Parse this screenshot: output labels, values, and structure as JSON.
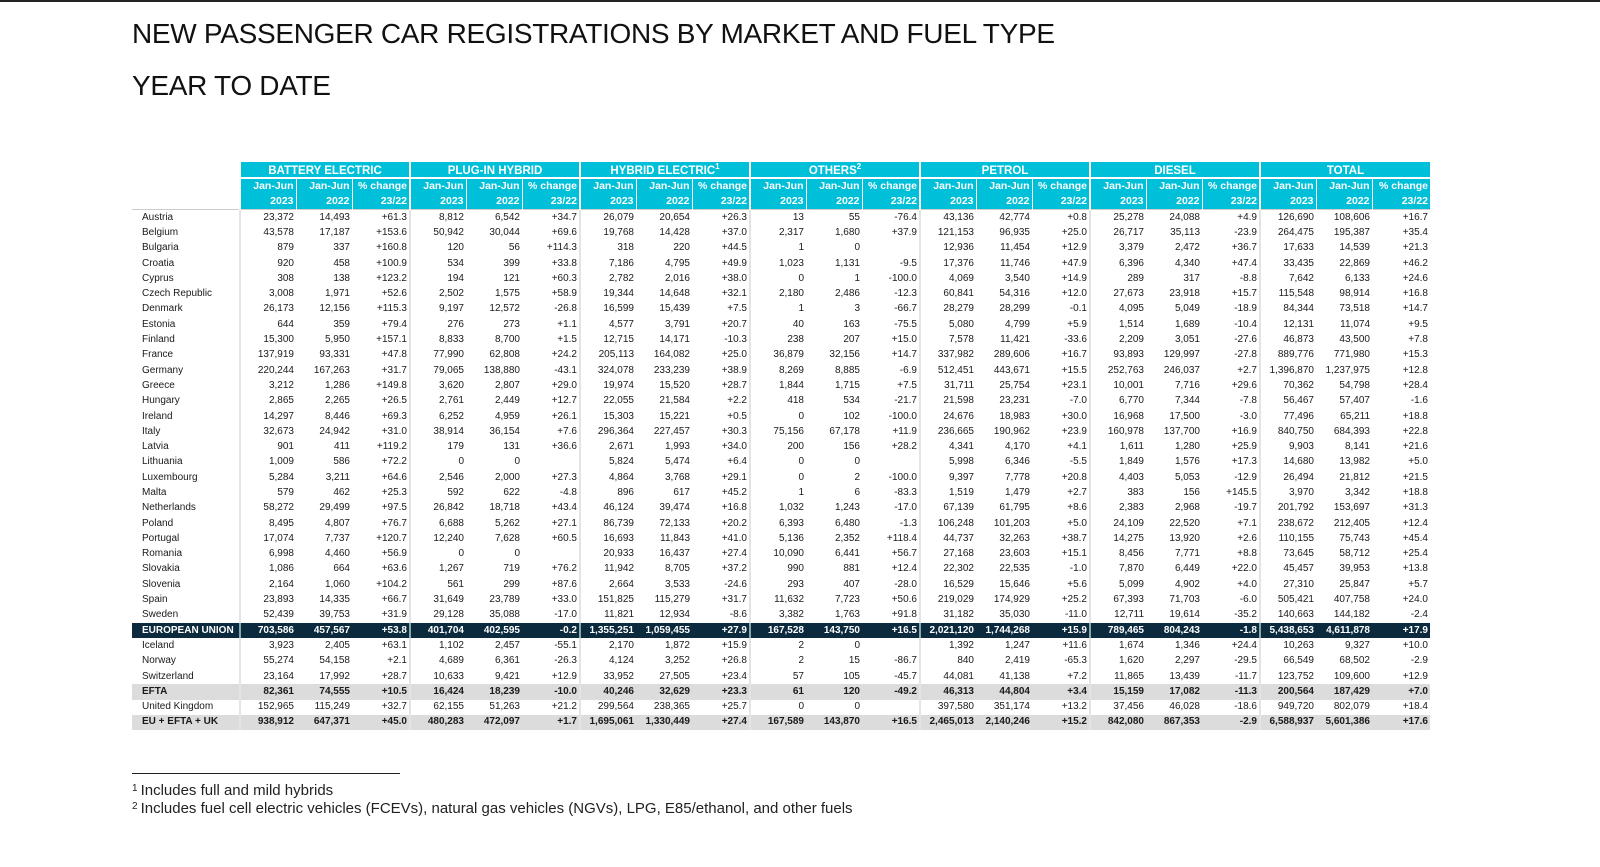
{
  "title": "NEW PASSENGER CAR REGISTRATIONS BY MARKET AND FUEL TYPE",
  "subtitle": "YEAR TO DATE",
  "header_color": "#00c0d9",
  "eu_row_color": "#0b2a3e",
  "groups": [
    {
      "label": "BATTERY ELECTRIC",
      "sup": ""
    },
    {
      "label": "PLUG-IN HYBRID",
      "sup": ""
    },
    {
      "label": "HYBRID ELECTRIC",
      "sup": "1"
    },
    {
      "label": "OTHERS",
      "sup": "2"
    },
    {
      "label": "PETROL",
      "sup": ""
    },
    {
      "label": "DIESEL",
      "sup": ""
    },
    {
      "label": "TOTAL",
      "sup": ""
    }
  ],
  "subheaders": [
    {
      "line1": "Jan-Jun",
      "line2": "2023"
    },
    {
      "line1": "Jan-Jun",
      "line2": "2022"
    },
    {
      "line1": "% change",
      "line2": "23/22"
    }
  ],
  "rows": [
    {
      "type": "country",
      "cells": [
        "Austria",
        "23,372",
        "14,493",
        "+61.3",
        "8,812",
        "6,542",
        "+34.7",
        "26,079",
        "20,654",
        "+26.3",
        "13",
        "55",
        "-76.4",
        "43,136",
        "42,774",
        "+0.8",
        "25,278",
        "24,088",
        "+4.9",
        "126,690",
        "108,606",
        "+16.7"
      ]
    },
    {
      "type": "country",
      "cells": [
        "Belgium",
        "43,578",
        "17,187",
        "+153.6",
        "50,942",
        "30,044",
        "+69.6",
        "19,768",
        "14,428",
        "+37.0",
        "2,317",
        "1,680",
        "+37.9",
        "121,153",
        "96,935",
        "+25.0",
        "26,717",
        "35,113",
        "-23.9",
        "264,475",
        "195,387",
        "+35.4"
      ]
    },
    {
      "type": "country",
      "cells": [
        "Bulgaria",
        "879",
        "337",
        "+160.8",
        "120",
        "56",
        "+114.3",
        "318",
        "220",
        "+44.5",
        "1",
        "0",
        "",
        "12,936",
        "11,454",
        "+12.9",
        "3,379",
        "2,472",
        "+36.7",
        "17,633",
        "14,539",
        "+21.3"
      ]
    },
    {
      "type": "country",
      "cells": [
        "Croatia",
        "920",
        "458",
        "+100.9",
        "534",
        "399",
        "+33.8",
        "7,186",
        "4,795",
        "+49.9",
        "1,023",
        "1,131",
        "-9.5",
        "17,376",
        "11,746",
        "+47.9",
        "6,396",
        "4,340",
        "+47.4",
        "33,435",
        "22,869",
        "+46.2"
      ]
    },
    {
      "type": "country",
      "cells": [
        "Cyprus",
        "308",
        "138",
        "+123.2",
        "194",
        "121",
        "+60.3",
        "2,782",
        "2,016",
        "+38.0",
        "0",
        "1",
        "-100.0",
        "4,069",
        "3,540",
        "+14.9",
        "289",
        "317",
        "-8.8",
        "7,642",
        "6,133",
        "+24.6"
      ]
    },
    {
      "type": "country",
      "cells": [
        "Czech Republic",
        "3,008",
        "1,971",
        "+52.6",
        "2,502",
        "1,575",
        "+58.9",
        "19,344",
        "14,648",
        "+32.1",
        "2,180",
        "2,486",
        "-12.3",
        "60,841",
        "54,316",
        "+12.0",
        "27,673",
        "23,918",
        "+15.7",
        "115,548",
        "98,914",
        "+16.8"
      ]
    },
    {
      "type": "country",
      "cells": [
        "Denmark",
        "26,173",
        "12,156",
        "+115.3",
        "9,197",
        "12,572",
        "-26.8",
        "16,599",
        "15,439",
        "+7.5",
        "1",
        "3",
        "-66.7",
        "28,279",
        "28,299",
        "-0.1",
        "4,095",
        "5,049",
        "-18.9",
        "84,344",
        "73,518",
        "+14.7"
      ]
    },
    {
      "type": "country",
      "cells": [
        "Estonia",
        "644",
        "359",
        "+79.4",
        "276",
        "273",
        "+1.1",
        "4,577",
        "3,791",
        "+20.7",
        "40",
        "163",
        "-75.5",
        "5,080",
        "4,799",
        "+5.9",
        "1,514",
        "1,689",
        "-10.4",
        "12,131",
        "11,074",
        "+9.5"
      ]
    },
    {
      "type": "country",
      "cells": [
        "Finland",
        "15,300",
        "5,950",
        "+157.1",
        "8,833",
        "8,700",
        "+1.5",
        "12,715",
        "14,171",
        "-10.3",
        "238",
        "207",
        "+15.0",
        "7,578",
        "11,421",
        "-33.6",
        "2,209",
        "3,051",
        "-27.6",
        "46,873",
        "43,500",
        "+7.8"
      ]
    },
    {
      "type": "country",
      "cells": [
        "France",
        "137,919",
        "93,331",
        "+47.8",
        "77,990",
        "62,808",
        "+24.2",
        "205,113",
        "164,082",
        "+25.0",
        "36,879",
        "32,156",
        "+14.7",
        "337,982",
        "289,606",
        "+16.7",
        "93,893",
        "129,997",
        "-27.8",
        "889,776",
        "771,980",
        "+15.3"
      ]
    },
    {
      "type": "country",
      "cells": [
        "Germany",
        "220,244",
        "167,263",
        "+31.7",
        "79,065",
        "138,880",
        "-43.1",
        "324,078",
        "233,239",
        "+38.9",
        "8,269",
        "8,885",
        "-6.9",
        "512,451",
        "443,671",
        "+15.5",
        "252,763",
        "246,037",
        "+2.7",
        "1,396,870",
        "1,237,975",
        "+12.8"
      ]
    },
    {
      "type": "country",
      "cells": [
        "Greece",
        "3,212",
        "1,286",
        "+149.8",
        "3,620",
        "2,807",
        "+29.0",
        "19,974",
        "15,520",
        "+28.7",
        "1,844",
        "1,715",
        "+7.5",
        "31,711",
        "25,754",
        "+23.1",
        "10,001",
        "7,716",
        "+29.6",
        "70,362",
        "54,798",
        "+28.4"
      ]
    },
    {
      "type": "country",
      "cells": [
        "Hungary",
        "2,865",
        "2,265",
        "+26.5",
        "2,761",
        "2,449",
        "+12.7",
        "22,055",
        "21,584",
        "+2.2",
        "418",
        "534",
        "-21.7",
        "21,598",
        "23,231",
        "-7.0",
        "6,770",
        "7,344",
        "-7.8",
        "56,467",
        "57,407",
        "-1.6"
      ]
    },
    {
      "type": "country",
      "cells": [
        "Ireland",
        "14,297",
        "8,446",
        "+69.3",
        "6,252",
        "4,959",
        "+26.1",
        "15,303",
        "15,221",
        "+0.5",
        "0",
        "102",
        "-100.0",
        "24,676",
        "18,983",
        "+30.0",
        "16,968",
        "17,500",
        "-3.0",
        "77,496",
        "65,211",
        "+18.8"
      ]
    },
    {
      "type": "country",
      "cells": [
        "Italy",
        "32,673",
        "24,942",
        "+31.0",
        "38,914",
        "36,154",
        "+7.6",
        "296,364",
        "227,457",
        "+30.3",
        "75,156",
        "67,178",
        "+11.9",
        "236,665",
        "190,962",
        "+23.9",
        "160,978",
        "137,700",
        "+16.9",
        "840,750",
        "684,393",
        "+22.8"
      ]
    },
    {
      "type": "country",
      "cells": [
        "Latvia",
        "901",
        "411",
        "+119.2",
        "179",
        "131",
        "+36.6",
        "2,671",
        "1,993",
        "+34.0",
        "200",
        "156",
        "+28.2",
        "4,341",
        "4,170",
        "+4.1",
        "1,611",
        "1,280",
        "+25.9",
        "9,903",
        "8,141",
        "+21.6"
      ]
    },
    {
      "type": "country",
      "cells": [
        "Lithuania",
        "1,009",
        "586",
        "+72.2",
        "0",
        "0",
        "",
        "5,824",
        "5,474",
        "+6.4",
        "0",
        "0",
        "",
        "5,998",
        "6,346",
        "-5.5",
        "1,849",
        "1,576",
        "+17.3",
        "14,680",
        "13,982",
        "+5.0"
      ]
    },
    {
      "type": "country",
      "cells": [
        "Luxembourg",
        "5,284",
        "3,211",
        "+64.6",
        "2,546",
        "2,000",
        "+27.3",
        "4,864",
        "3,768",
        "+29.1",
        "0",
        "2",
        "-100.0",
        "9,397",
        "7,778",
        "+20.8",
        "4,403",
        "5,053",
        "-12.9",
        "26,494",
        "21,812",
        "+21.5"
      ]
    },
    {
      "type": "country",
      "cells": [
        "Malta",
        "579",
        "462",
        "+25.3",
        "592",
        "622",
        "-4.8",
        "896",
        "617",
        "+45.2",
        "1",
        "6",
        "-83.3",
        "1,519",
        "1,479",
        "+2.7",
        "383",
        "156",
        "+145.5",
        "3,970",
        "3,342",
        "+18.8"
      ]
    },
    {
      "type": "country",
      "cells": [
        "Netherlands",
        "58,272",
        "29,499",
        "+97.5",
        "26,842",
        "18,718",
        "+43.4",
        "46,124",
        "39,474",
        "+16.8",
        "1,032",
        "1,243",
        "-17.0",
        "67,139",
        "61,795",
        "+8.6",
        "2,383",
        "2,968",
        "-19.7",
        "201,792",
        "153,697",
        "+31.3"
      ]
    },
    {
      "type": "country",
      "cells": [
        "Poland",
        "8,495",
        "4,807",
        "+76.7",
        "6,688",
        "5,262",
        "+27.1",
        "86,739",
        "72,133",
        "+20.2",
        "6,393",
        "6,480",
        "-1.3",
        "106,248",
        "101,203",
        "+5.0",
        "24,109",
        "22,520",
        "+7.1",
        "238,672",
        "212,405",
        "+12.4"
      ]
    },
    {
      "type": "country",
      "cells": [
        "Portugal",
        "17,074",
        "7,737",
        "+120.7",
        "12,240",
        "7,628",
        "+60.5",
        "16,693",
        "11,843",
        "+41.0",
        "5,136",
        "2,352",
        "+118.4",
        "44,737",
        "32,263",
        "+38.7",
        "14,275",
        "13,920",
        "+2.6",
        "110,155",
        "75,743",
        "+45.4"
      ]
    },
    {
      "type": "country",
      "cells": [
        "Romania",
        "6,998",
        "4,460",
        "+56.9",
        "0",
        "0",
        "",
        "20,933",
        "16,437",
        "+27.4",
        "10,090",
        "6,441",
        "+56.7",
        "27,168",
        "23,603",
        "+15.1",
        "8,456",
        "7,771",
        "+8.8",
        "73,645",
        "58,712",
        "+25.4"
      ]
    },
    {
      "type": "country",
      "cells": [
        "Slovakia",
        "1,086",
        "664",
        "+63.6",
        "1,267",
        "719",
        "+76.2",
        "11,942",
        "8,705",
        "+37.2",
        "990",
        "881",
        "+12.4",
        "22,302",
        "22,535",
        "-1.0",
        "7,870",
        "6,449",
        "+22.0",
        "45,457",
        "39,953",
        "+13.8"
      ]
    },
    {
      "type": "country",
      "cells": [
        "Slovenia",
        "2,164",
        "1,060",
        "+104.2",
        "561",
        "299",
        "+87.6",
        "2,664",
        "3,533",
        "-24.6",
        "293",
        "407",
        "-28.0",
        "16,529",
        "15,646",
        "+5.6",
        "5,099",
        "4,902",
        "+4.0",
        "27,310",
        "25,847",
        "+5.7"
      ]
    },
    {
      "type": "country",
      "cells": [
        "Spain",
        "23,893",
        "14,335",
        "+66.7",
        "31,649",
        "23,789",
        "+33.0",
        "151,825",
        "115,279",
        "+31.7",
        "11,632",
        "7,723",
        "+50.6",
        "219,029",
        "174,929",
        "+25.2",
        "67,393",
        "71,703",
        "-6.0",
        "505,421",
        "407,758",
        "+24.0"
      ]
    },
    {
      "type": "country",
      "cells": [
        "Sweden",
        "52,439",
        "39,753",
        "+31.9",
        "29,128",
        "35,088",
        "-17.0",
        "11,821",
        "12,934",
        "-8.6",
        "3,382",
        "1,763",
        "+91.8",
        "31,182",
        "35,030",
        "-11.0",
        "12,711",
        "19,614",
        "-35.2",
        "140,663",
        "144,182",
        "-2.4"
      ]
    },
    {
      "type": "eu",
      "cells": [
        "EUROPEAN UNION",
        "703,586",
        "457,567",
        "+53.8",
        "401,704",
        "402,595",
        "-0.2",
        "1,355,251",
        "1,059,455",
        "+27.9",
        "167,528",
        "143,750",
        "+16.5",
        "2,021,120",
        "1,744,268",
        "+15.9",
        "789,465",
        "804,243",
        "-1.8",
        "5,438,653",
        "4,611,878",
        "+17.9"
      ]
    },
    {
      "type": "country",
      "cells": [
        "Iceland",
        "3,923",
        "2,405",
        "+63.1",
        "1,102",
        "2,457",
        "-55.1",
        "2,170",
        "1,872",
        "+15.9",
        "2",
        "0",
        "",
        "1,392",
        "1,247",
        "+11.6",
        "1,674",
        "1,346",
        "+24.4",
        "10,263",
        "9,327",
        "+10.0"
      ]
    },
    {
      "type": "country",
      "cells": [
        "Norway",
        "55,274",
        "54,158",
        "+2.1",
        "4,689",
        "6,361",
        "-26.3",
        "4,124",
        "3,252",
        "+26.8",
        "2",
        "15",
        "-86.7",
        "840",
        "2,419",
        "-65.3",
        "1,620",
        "2,297",
        "-29.5",
        "66,549",
        "68,502",
        "-2.9"
      ]
    },
    {
      "type": "country",
      "cells": [
        "Switzerland",
        "23,164",
        "17,992",
        "+28.7",
        "10,633",
        "9,421",
        "+12.9",
        "33,952",
        "27,505",
        "+23.4",
        "57",
        "105",
        "-45.7",
        "44,081",
        "41,138",
        "+7.2",
        "11,865",
        "13,439",
        "-11.7",
        "123,752",
        "109,600",
        "+12.9"
      ]
    },
    {
      "type": "efta",
      "cells": [
        "EFTA",
        "82,361",
        "74,555",
        "+10.5",
        "16,424",
        "18,239",
        "-10.0",
        "40,246",
        "32,629",
        "+23.3",
        "61",
        "120",
        "-49.2",
        "46,313",
        "44,804",
        "+3.4",
        "15,159",
        "17,082",
        "-11.3",
        "200,564",
        "187,429",
        "+7.0"
      ]
    },
    {
      "type": "country",
      "cells": [
        "United Kingdom",
        "152,965",
        "115,249",
        "+32.7",
        "62,155",
        "51,263",
        "+21.2",
        "299,564",
        "238,365",
        "+25.7",
        "0",
        "0",
        "",
        "397,580",
        "351,174",
        "+13.2",
        "37,456",
        "46,028",
        "-18.6",
        "949,720",
        "802,079",
        "+18.4"
      ]
    },
    {
      "type": "total",
      "cells": [
        "EU + EFTA + UK",
        "938,912",
        "647,371",
        "+45.0",
        "480,283",
        "472,097",
        "+1.7",
        "1,695,061",
        "1,330,449",
        "+27.4",
        "167,589",
        "143,870",
        "+16.5",
        "2,465,013",
        "2,140,246",
        "+15.2",
        "842,080",
        "867,353",
        "-2.9",
        "6,588,937",
        "5,601,386",
        "+17.6"
      ]
    }
  ],
  "footnotes": [
    {
      "mark": "1",
      "text": "Includes full and mild hybrids"
    },
    {
      "mark": "2",
      "text": "Includes fuel cell electric vehicles (FCEVs), natural gas vehicles (NGVs), LPG, E85/ethanol, and other fuels"
    }
  ]
}
